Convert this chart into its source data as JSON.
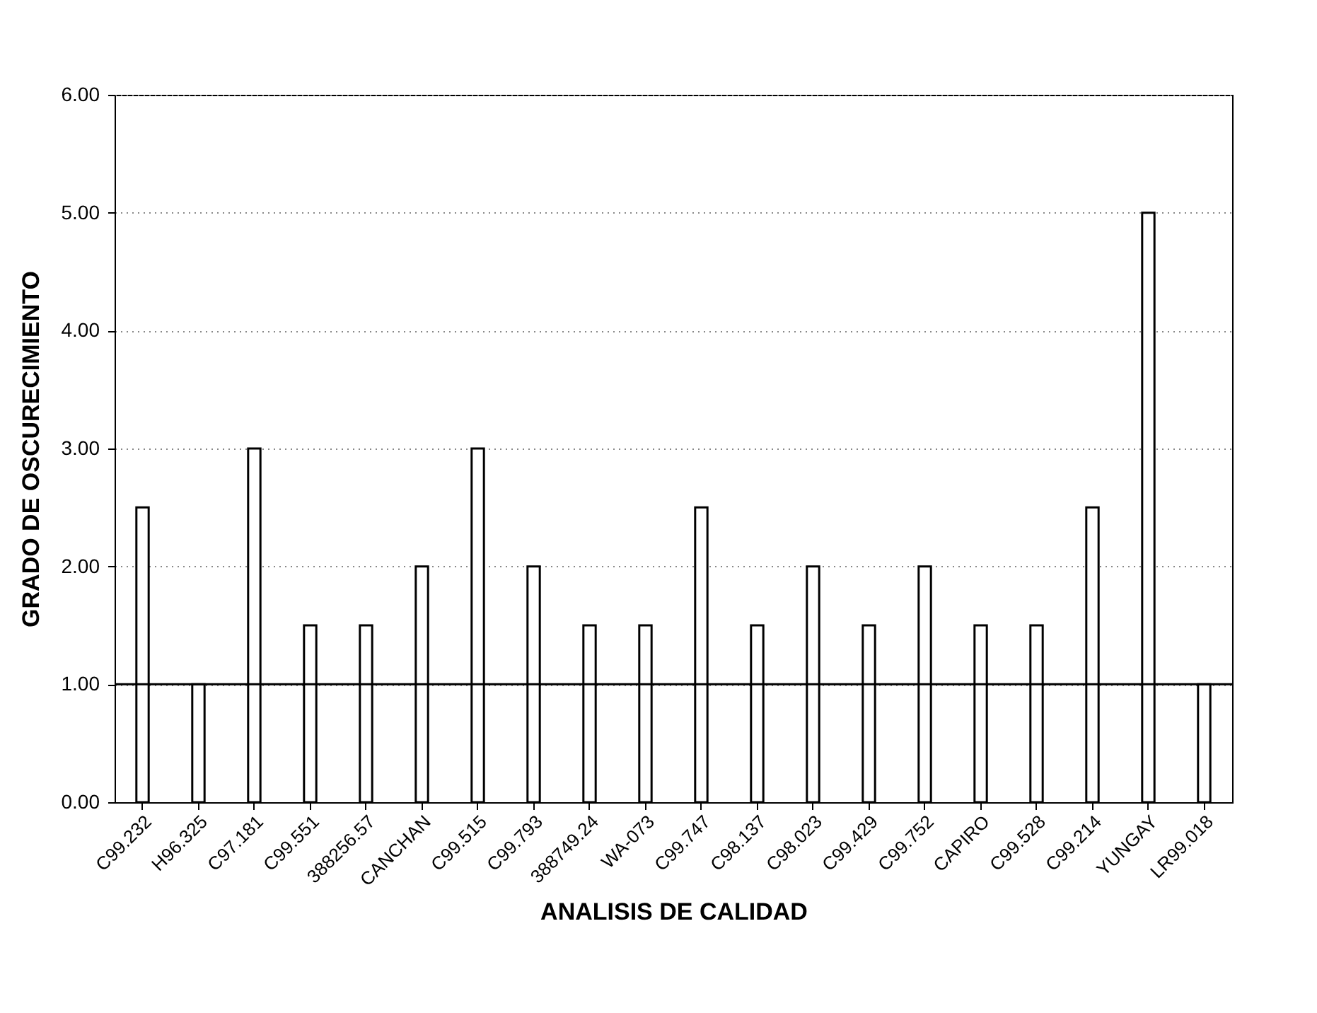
{
  "chart_data": {
    "type": "bar",
    "xlabel": "ANALISIS DE CALIDAD",
    "ylabel": "GRADO DE OSCURECIMIENTO",
    "categories": [
      "C99.232",
      "H96.325",
      "C97.181",
      "C99.551",
      "388256.57",
      "CANCHAN",
      "C99.515",
      "C99.793",
      "388749.24",
      "WA-073",
      "C99.747",
      "C98.137",
      "C98.023",
      "C99.429",
      "C99.752",
      "CAPIRO",
      "C99.528",
      "C99.214",
      "YUNGAY",
      "LR99.018"
    ],
    "values": [
      2.5,
      1.0,
      3.0,
      1.5,
      1.5,
      2.0,
      3.0,
      2.0,
      1.5,
      1.5,
      2.5,
      1.5,
      2.0,
      1.5,
      2.0,
      1.5,
      1.5,
      2.5,
      5.0,
      1.0
    ],
    "color": "#ffffff",
    "ylim": [
      0,
      6
    ],
    "yticks": [
      {
        "value": 0,
        "label": "0.00"
      },
      {
        "value": 1,
        "label": "1.00"
      },
      {
        "value": 2,
        "label": "2.00"
      },
      {
        "value": 3,
        "label": "3.00"
      },
      {
        "value": 4,
        "label": "4.00"
      },
      {
        "value": 5,
        "label": "5.00"
      },
      {
        "value": 6,
        "label": "6.00"
      }
    ],
    "grid": "y",
    "ref_lines": [
      {
        "axis": "y",
        "value": 1,
        "color": "#000000"
      }
    ]
  }
}
